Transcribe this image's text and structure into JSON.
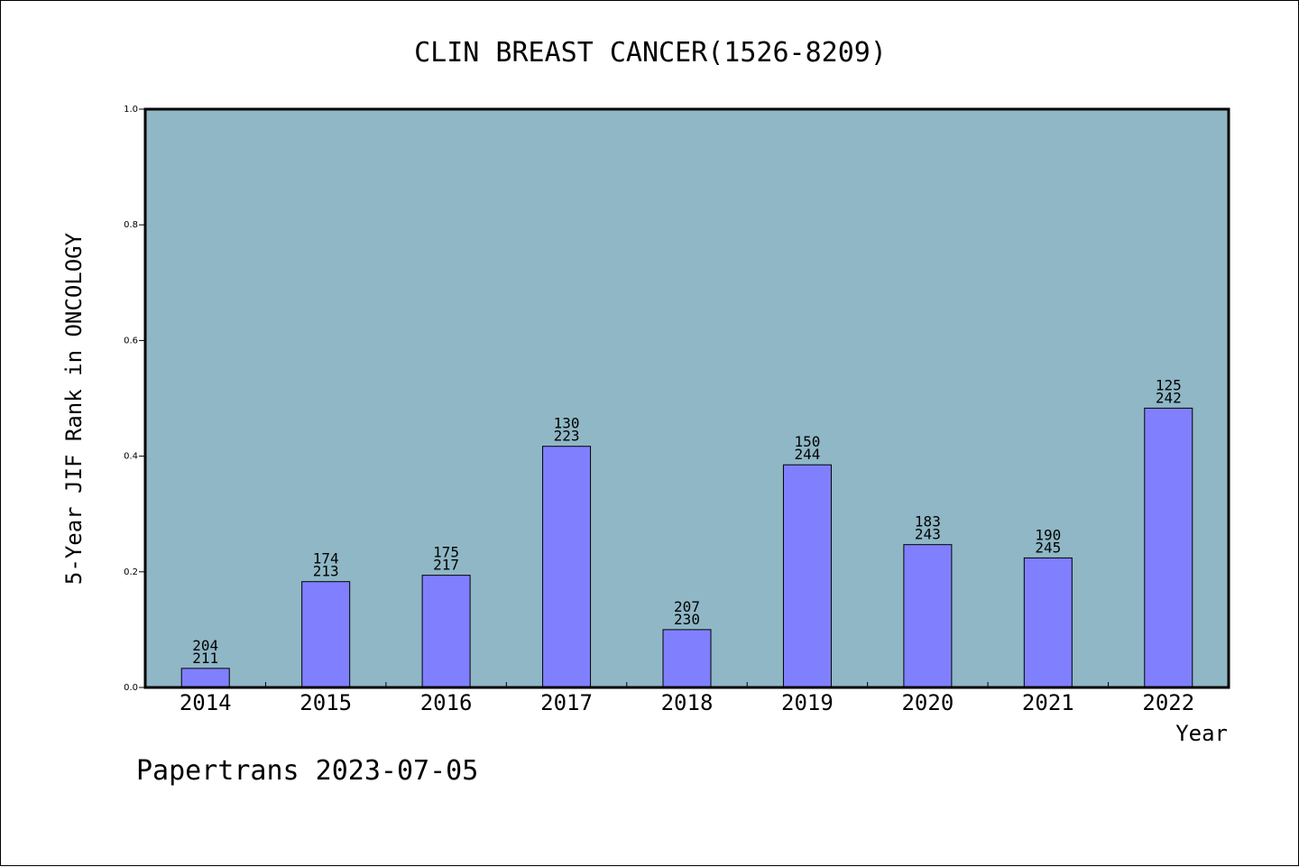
{
  "chart_data": {
    "type": "bar",
    "title": "CLIN BREAST CANCER(1526-8209)",
    "xlabel": "Year",
    "ylabel": "5-Year JIF Rank in ONCOLOGY",
    "ylim": [
      0,
      1.0
    ],
    "yticks": [
      "0.0",
      "0.2",
      "0.4",
      "0.6",
      "0.8",
      "1.0"
    ],
    "categories": [
      "2014",
      "2015",
      "2016",
      "2017",
      "2018",
      "2019",
      "2020",
      "2021",
      "2022"
    ],
    "values": [
      0.033,
      0.183,
      0.194,
      0.417,
      0.1,
      0.385,
      0.247,
      0.224,
      0.483
    ],
    "ranks": [
      "204",
      "174",
      "175",
      "130",
      "207",
      "150",
      "183",
      "190",
      "125"
    ],
    "totals": [
      "211",
      "213",
      "217",
      "223",
      "230",
      "244",
      "243",
      "245",
      "242"
    ],
    "grid": false,
    "colors": {
      "plot_bg": "#8fb7c6",
      "bar": "#8080ff",
      "bar_edge": "#000000"
    }
  },
  "footer": {
    "text": "Papertrans 2023-07-05"
  }
}
